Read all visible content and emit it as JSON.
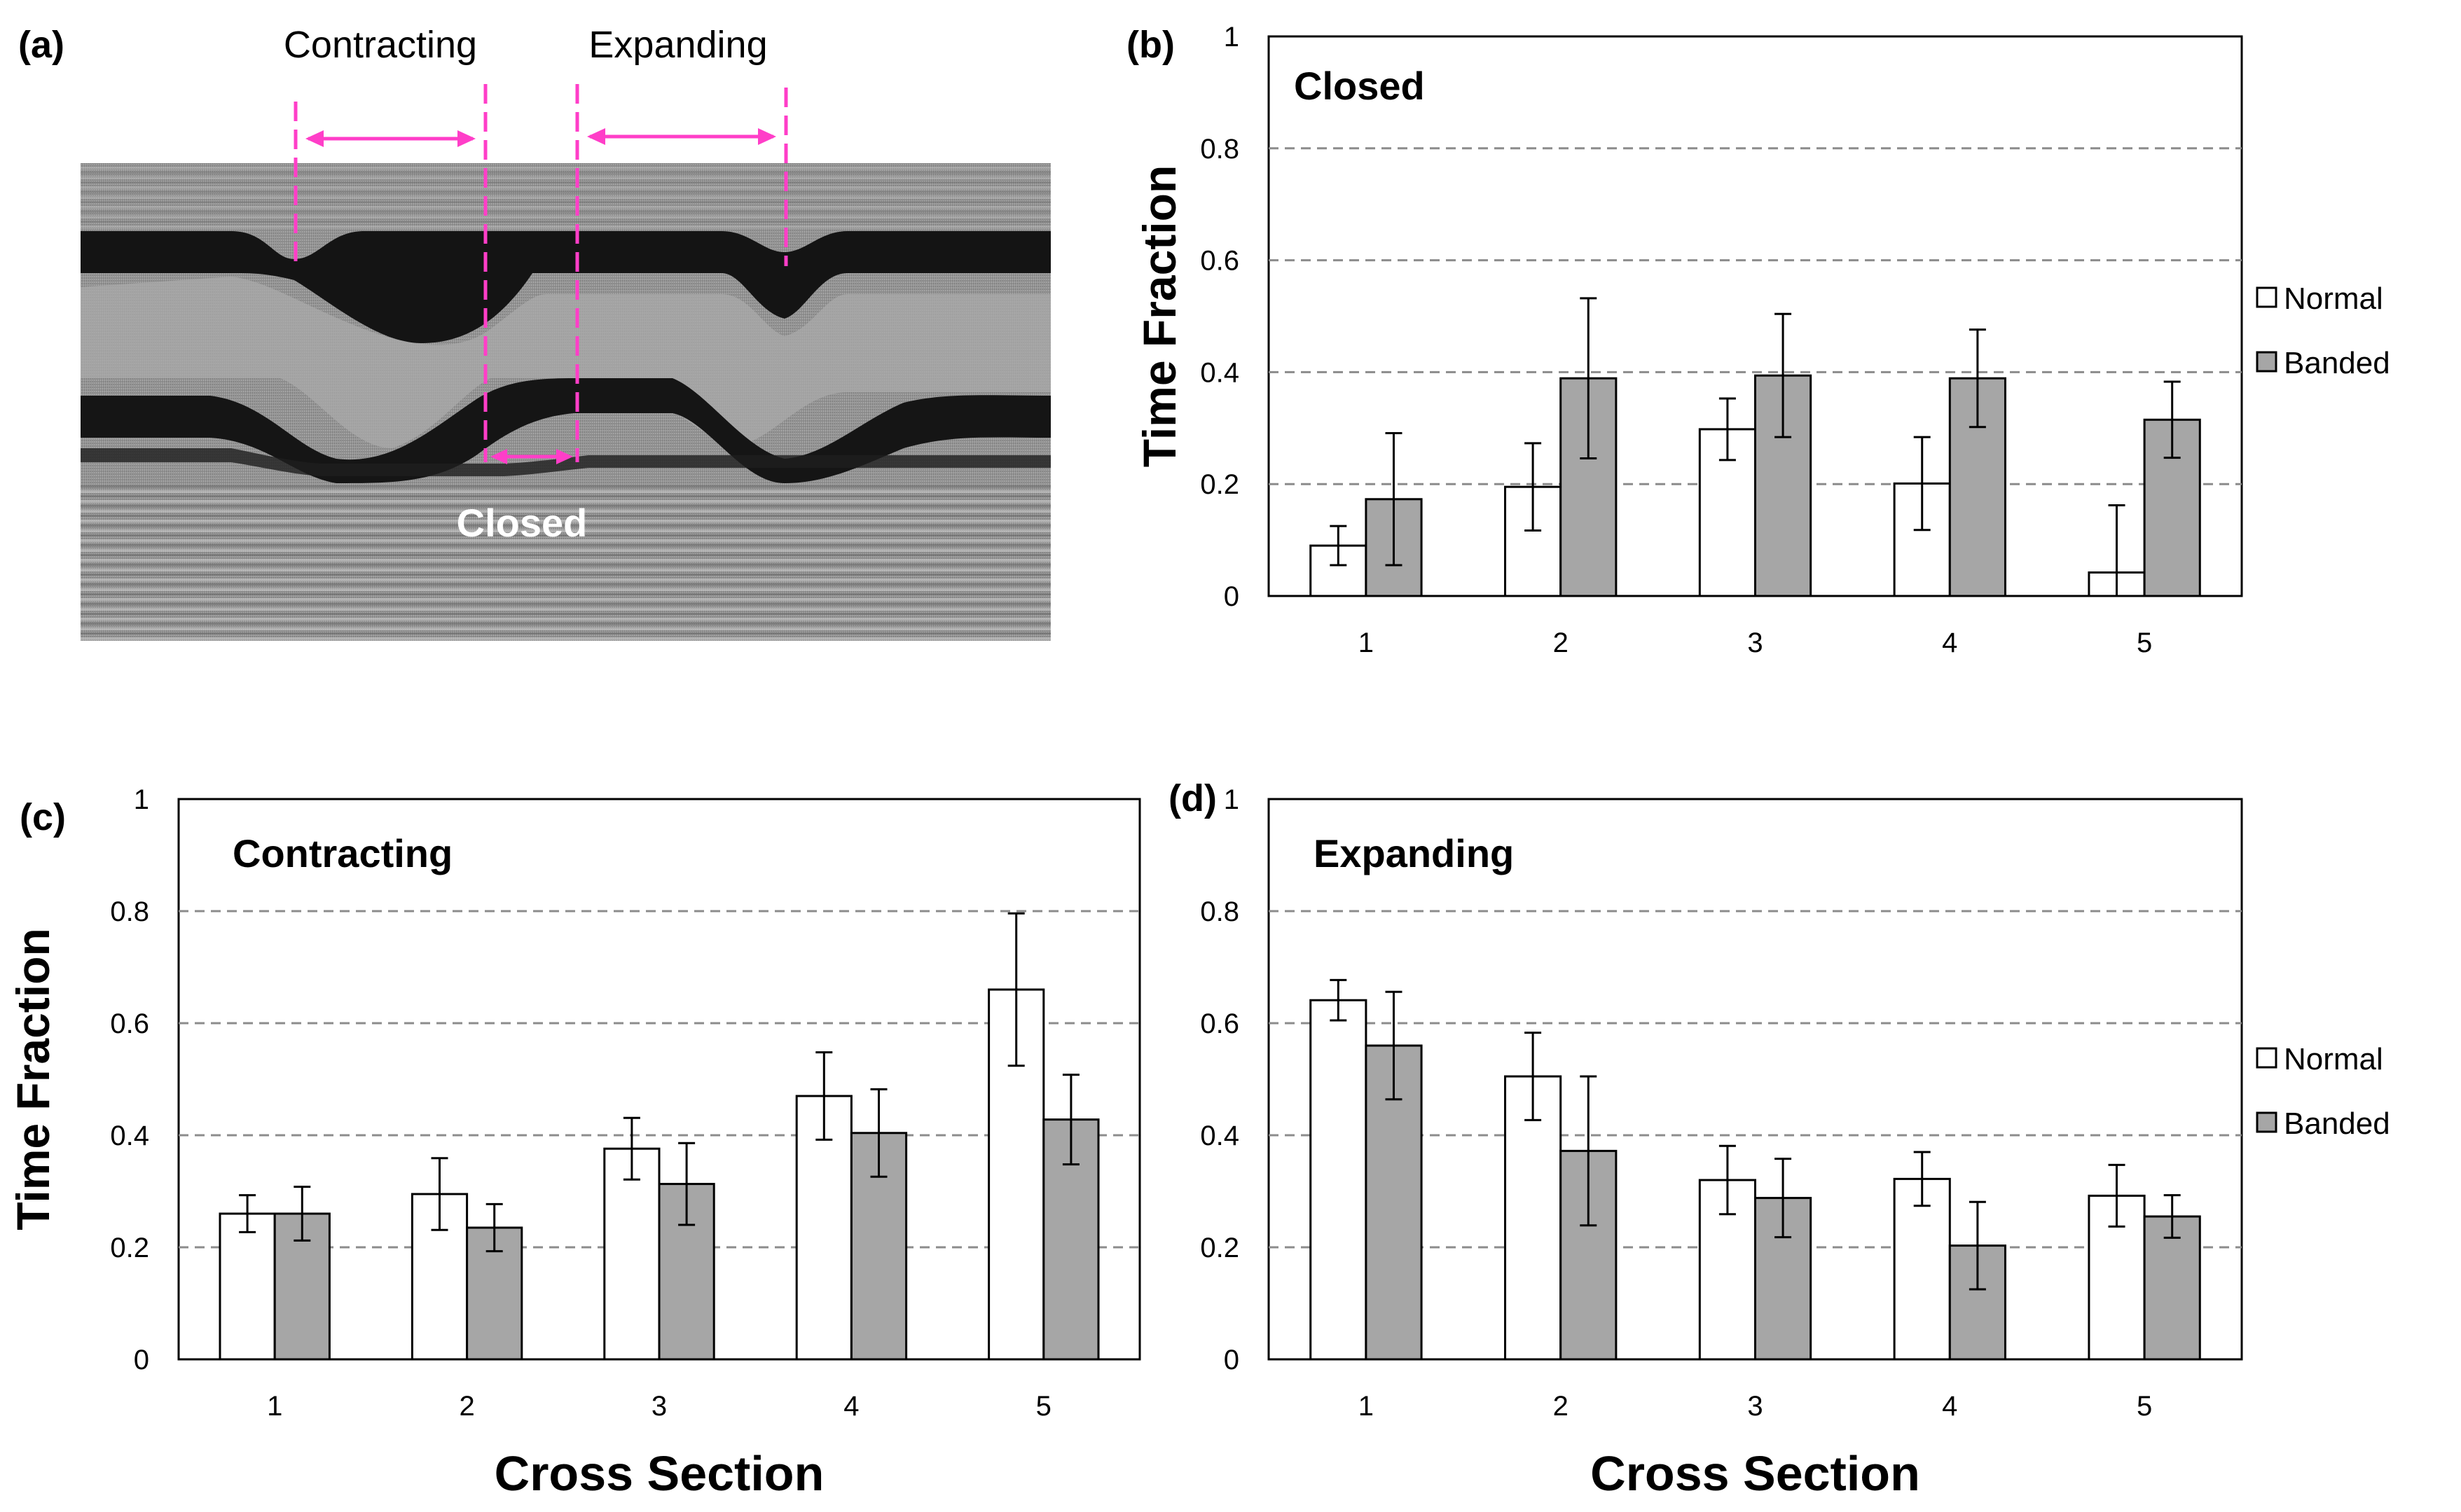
{
  "panel_a": {
    "label": "(a)",
    "annotations": {
      "contracting": "Contracting",
      "expanding": "Expanding",
      "closed": "Closed"
    },
    "annotation_color": "#ff3ec8"
  },
  "legend": {
    "normal": "Normal",
    "banded": "Banded"
  },
  "colors": {
    "normal_fill": "#ffffff",
    "banded_fill": "#a6a6a6",
    "bar_stroke": "#000000",
    "grid": "#8c8c8c"
  },
  "chart_data": [
    {
      "id": "b",
      "panel_label": "(b)",
      "type": "bar",
      "title": "Closed",
      "ylabel": "Time Fraction",
      "xlabel": "",
      "categories": [
        "1",
        "2",
        "3",
        "4",
        "5"
      ],
      "ylim": [
        0,
        1
      ],
      "yticks": [
        "0",
        "0.2",
        "0.4",
        "0.6",
        "0.8",
        "1"
      ],
      "grid": "horizontal-dashed",
      "legend": "right",
      "series": [
        {
          "name": "Normal",
          "values": [
            0.09,
            0.195,
            0.298,
            0.201,
            0.042
          ],
          "errors": [
            0.035,
            0.078,
            0.055,
            0.083,
            0.12
          ]
        },
        {
          "name": "Banded",
          "values": [
            0.173,
            0.389,
            0.394,
            0.389,
            0.315
          ],
          "errors": [
            0.118,
            0.143,
            0.11,
            0.087,
            0.068
          ]
        }
      ]
    },
    {
      "id": "c",
      "panel_label": "(c)",
      "type": "bar",
      "title": "Contracting",
      "ylabel": "Time Fraction",
      "xlabel": "Cross Section",
      "categories": [
        "1",
        "2",
        "3",
        "4",
        "5"
      ],
      "ylim": [
        0,
        1
      ],
      "yticks": [
        "0",
        "0.2",
        "0.4",
        "0.6",
        "0.8",
        "1"
      ],
      "grid": "horizontal-dashed",
      "legend": "none",
      "series": [
        {
          "name": "Normal",
          "values": [
            0.26,
            0.295,
            0.376,
            0.47,
            0.66
          ],
          "errors": [
            0.033,
            0.064,
            0.055,
            0.078,
            0.136
          ]
        },
        {
          "name": "Banded",
          "values": [
            0.26,
            0.235,
            0.313,
            0.404,
            0.428
          ],
          "errors": [
            0.048,
            0.042,
            0.073,
            0.078,
            0.08
          ]
        }
      ]
    },
    {
      "id": "d",
      "panel_label": "(d)",
      "type": "bar",
      "title": "Expanding",
      "ylabel": "",
      "xlabel": "Cross Section",
      "categories": [
        "1",
        "2",
        "3",
        "4",
        "5"
      ],
      "ylim": [
        0,
        1
      ],
      "yticks": [
        "0",
        "0.2",
        "0.4",
        "0.6",
        "0.8",
        "1"
      ],
      "grid": "horizontal-dashed",
      "legend": "right",
      "series": [
        {
          "name": "Normal",
          "values": [
            0.641,
            0.505,
            0.32,
            0.322,
            0.292
          ],
          "errors": [
            0.036,
            0.078,
            0.061,
            0.048,
            0.055
          ]
        },
        {
          "name": "Banded",
          "values": [
            0.56,
            0.372,
            0.288,
            0.203,
            0.255
          ],
          "errors": [
            0.096,
            0.133,
            0.07,
            0.078,
            0.038
          ]
        }
      ]
    }
  ]
}
